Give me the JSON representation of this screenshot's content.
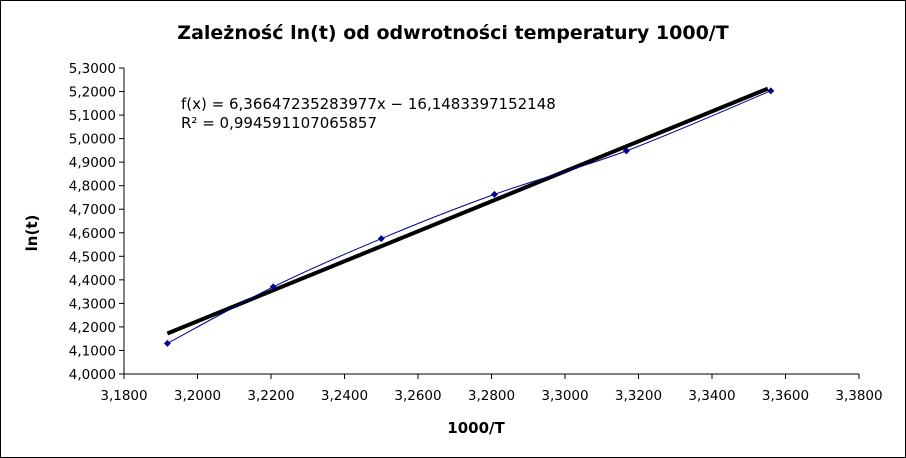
{
  "chart_data": {
    "type": "scatter",
    "title": "Zależność ln(t) od odwrotności temperatury 1000/T",
    "xlabel": "1000/T",
    "ylabel": "ln(t)",
    "xlim": [
      3.18,
      3.38
    ],
    "ylim": [
      4.0,
      5.3
    ],
    "x_ticks": [
      "3,1800",
      "3,2000",
      "3,2200",
      "3,2400",
      "3,2600",
      "3,2800",
      "3,3000",
      "3,3200",
      "3,3400",
      "3,3600",
      "3,3800"
    ],
    "y_ticks": [
      "4,0000",
      "4,1000",
      "4,2000",
      "4,3000",
      "4,4000",
      "4,5000",
      "4,6000",
      "4,7000",
      "4,8000",
      "4,9000",
      "5,0000",
      "5,1000",
      "5,2000",
      "5,3000"
    ],
    "grid": false,
    "legend": "none",
    "series": [
      {
        "points": [
          {
            "x": 3.1918,
            "y": 4.13
          },
          {
            "x": 3.2206,
            "y": 4.37
          },
          {
            "x": 3.25,
            "y": 4.575
          },
          {
            "x": 3.2808,
            "y": 4.763
          },
          {
            "x": 3.3167,
            "y": 4.948
          },
          {
            "x": 3.356,
            "y": 5.203
          }
        ],
        "color": "#00008b",
        "line": "smooth"
      }
    ],
    "trendline": {
      "slope": 6.36647235283977,
      "intercept": -16.1483397152148,
      "x_range": [
        3.1918,
        3.3552
      ],
      "color": "#000000"
    },
    "annotations": [
      "f(x) = 6,36647235283977x − 16,1483397152148",
      "R² = 0,994591107065857"
    ]
  }
}
